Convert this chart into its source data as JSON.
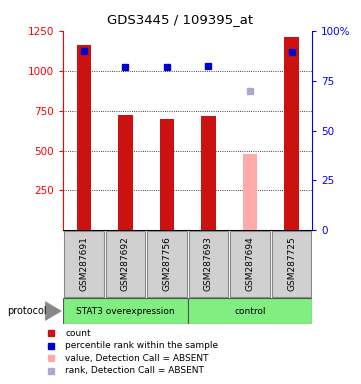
{
  "title": "GDS3445 / 109395_at",
  "samples": [
    "GSM287691",
    "GSM287692",
    "GSM287756",
    "GSM287693",
    "GSM287694",
    "GSM287725"
  ],
  "count_values": [
    1160,
    720,
    700,
    715,
    null,
    1210
  ],
  "count_absent_values": [
    null,
    null,
    null,
    null,
    480,
    null
  ],
  "rank_values": [
    1120,
    1020,
    1020,
    1030,
    null,
    1115
  ],
  "rank_absent_values": [
    null,
    null,
    null,
    null,
    870,
    null
  ],
  "protocol_groups": [
    {
      "label": "STAT3 overexpression",
      "n": 3,
      "color": "#90ee90"
    },
    {
      "label": "control",
      "n": 3,
      "color": "#90ee90"
    }
  ],
  "ylim_left": [
    0,
    1250
  ],
  "ylim_right": [
    0,
    100
  ],
  "yticks_left": [
    250,
    500,
    750,
    1000,
    1250
  ],
  "yticks_right": [
    0,
    25,
    50,
    75,
    100
  ],
  "ytick_right_labels": [
    "0",
    "25",
    "50",
    "75",
    "100%"
  ],
  "bar_color": "#cc1111",
  "absent_bar_color": "#ffaaaa",
  "rank_color": "#0000cc",
  "rank_absent_color": "#aaaacc",
  "bar_width": 0.35,
  "legend_items": [
    {
      "label": "count",
      "color": "#cc1111"
    },
    {
      "label": "percentile rank within the sample",
      "color": "#0000cc"
    },
    {
      "label": "value, Detection Call = ABSENT",
      "color": "#ffaaaa"
    },
    {
      "label": "rank, Detection Call = ABSENT",
      "color": "#aaaacc"
    }
  ]
}
